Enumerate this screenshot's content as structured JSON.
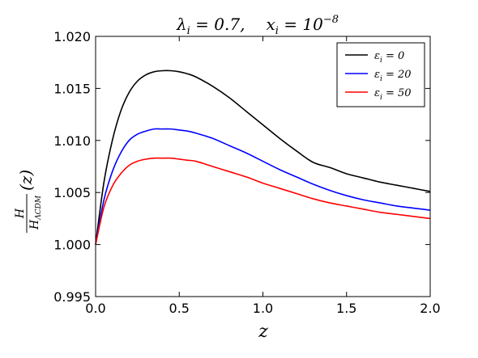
{
  "chart_data": {
    "type": "line",
    "title": {
      "left": "λ",
      "left_sub": "i",
      "left_rest": " = 0.7,",
      "right": "x",
      "right_sub": "i",
      "right_rest": " = 10",
      "right_sup": "−8"
    },
    "xlabel": "z",
    "ylabel": {
      "numerator": "H",
      "denominator": "H",
      "denominator_sub": "ΛCDM",
      "suffix": "(z)"
    },
    "xlim": [
      0.0,
      2.0
    ],
    "ylim": [
      0.995,
      1.02
    ],
    "xticks": [
      "0.0",
      "0.5",
      "1.0",
      "1.5",
      "2.0"
    ],
    "yticks": [
      "0.995",
      "1.000",
      "1.005",
      "1.010",
      "1.015",
      "1.020"
    ],
    "grid": false,
    "legend_position": "top-right",
    "x": [
      0.0,
      0.05,
      0.1,
      0.15,
      0.2,
      0.25,
      0.3,
      0.35,
      0.4,
      0.45,
      0.5,
      0.55,
      0.6,
      0.7,
      0.8,
      0.9,
      1.0,
      1.1,
      1.2,
      1.3,
      1.4,
      1.5,
      1.6,
      1.7,
      1.8,
      1.9,
      2.0
    ],
    "series": [
      {
        "name": "ε",
        "name_sub": "i",
        "name_rest": " = 0",
        "color": "#000000",
        "values": [
          1.0,
          1.006,
          1.01,
          1.0128,
          1.0146,
          1.0157,
          1.0163,
          1.0166,
          1.0167,
          1.0167,
          1.0166,
          1.0164,
          1.0161,
          1.0152,
          1.0141,
          1.0128,
          1.0115,
          1.0102,
          1.009,
          1.0079,
          1.0074,
          1.0068,
          1.0064,
          1.006,
          1.0057,
          1.0054,
          1.0051
        ]
      },
      {
        "name": "ε",
        "name_sub": "i",
        "name_rest": " = 20",
        "color": "#0000ff",
        "values": [
          1.0,
          1.0043,
          1.007,
          1.0088,
          1.01,
          1.0106,
          1.0109,
          1.0111,
          1.0111,
          1.0111,
          1.011,
          1.0109,
          1.0107,
          1.0102,
          1.0095,
          1.0088,
          1.008,
          1.0072,
          1.0065,
          1.0058,
          1.0052,
          1.0047,
          1.0043,
          1.004,
          1.0037,
          1.0035,
          1.0033
        ]
      },
      {
        "name": "ε",
        "name_sub": "i",
        "name_rest": " = 50",
        "color": "#ff0000",
        "values": [
          1.0,
          1.0036,
          1.0056,
          1.0068,
          1.0076,
          1.008,
          1.0082,
          1.0083,
          1.0083,
          1.0083,
          1.0082,
          1.0081,
          1.008,
          1.0075,
          1.007,
          1.0065,
          1.0059,
          1.0054,
          1.0049,
          1.0044,
          1.004,
          1.0037,
          1.0034,
          1.0031,
          1.0029,
          1.0027,
          1.0025
        ]
      }
    ]
  }
}
